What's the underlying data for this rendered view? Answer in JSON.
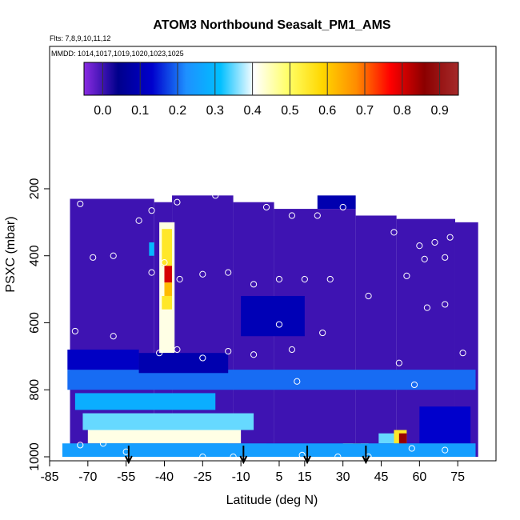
{
  "chart_data": {
    "type": "heatmap",
    "title": "ATOM3 Northbound Seasalt_PM1_AMS",
    "notes": [
      "Flts: 7,8,9,10,11,12",
      "MMDD: 1014,1017,1019,1020,1023,1025"
    ],
    "xlabel": "Latitude (deg N)",
    "ylabel": "PSXC (mbar)",
    "xlim": [
      -85,
      90
    ],
    "ylim": [
      1000,
      0
    ],
    "x_ticks": [
      -85,
      -70,
      -55,
      -40,
      -25,
      -10,
      5,
      15,
      30,
      45,
      60,
      75
    ],
    "y_ticks": [
      200,
      400,
      600,
      800,
      1000
    ],
    "colorbar": {
      "ticks": [
        0.0,
        0.1,
        0.2,
        0.3,
        0.4,
        0.5,
        0.6,
        0.7,
        0.8,
        0.9
      ],
      "tick_labels": [
        "0.0",
        "0.1",
        "0.2",
        "0.3",
        "0.4",
        "0.5",
        "0.6",
        "0.7",
        "0.8",
        "0.9"
      ],
      "range": [
        -0.05,
        0.95
      ],
      "colors": [
        "#8a2be2",
        "#00008b",
        "#0000cd",
        "#1e90ff",
        "#00bfff",
        "#ffffff",
        "#ffff66",
        "#ffd700",
        "#ff8c00",
        "#ff0000",
        "#8b0000",
        "#a52a2a"
      ]
    },
    "profiles": [
      {
        "lat_start": -77,
        "lat_end": -44,
        "p_top": 230,
        "p_bottom": 1000
      },
      {
        "lat_start": -44,
        "lat_end": -37,
        "p_top": 240,
        "p_bottom": 1000
      },
      {
        "lat_start": -37,
        "lat_end": -13,
        "p_top": 220,
        "p_bottom": 1000
      },
      {
        "lat_start": -13,
        "lat_end": 3,
        "p_top": 240,
        "p_bottom": 1000
      },
      {
        "lat_start": 3,
        "lat_end": 35,
        "p_top": 260,
        "p_bottom": 1000
      },
      {
        "lat_start": 35,
        "lat_end": 51,
        "p_top": 280,
        "p_bottom": 1000
      },
      {
        "lat_start": 51,
        "lat_end": 74,
        "p_top": 290,
        "p_bottom": 1000
      },
      {
        "lat_start": 74,
        "lat_end": 83,
        "p_top": 300,
        "p_bottom": 1000
      }
    ],
    "features": [
      {
        "lat": [
          -42,
          -36
        ],
        "p": [
          300,
          690
        ],
        "value": 0.42
      },
      {
        "lat": [
          -41,
          -37
        ],
        "p": [
          320,
          430
        ],
        "value": 0.55
      },
      {
        "lat": [
          -40,
          -37
        ],
        "p": [
          430,
          480
        ],
        "value": 0.8
      },
      {
        "lat": [
          -40,
          -37
        ],
        "p": [
          480,
          520
        ],
        "value": 0.62
      },
      {
        "lat": [
          -41,
          -37
        ],
        "p": [
          520,
          560
        ],
        "value": 0.55
      },
      {
        "lat": [
          -46,
          -44
        ],
        "p": [
          360,
          400
        ],
        "value": 0.3
      },
      {
        "lat": [
          -78,
          82
        ],
        "p": [
          740,
          800
        ],
        "value": 0.2
      },
      {
        "lat": [
          -75,
          -20
        ],
        "p": [
          810,
          860
        ],
        "value": 0.28
      },
      {
        "lat": [
          -72,
          -5
        ],
        "p": [
          870,
          920
        ],
        "value": 0.35
      },
      {
        "lat": [
          -70,
          -10
        ],
        "p": [
          920,
          960
        ],
        "value": 0.42
      },
      {
        "lat": [
          -65,
          -15
        ],
        "p": [
          960,
          1000
        ],
        "value": 0.3
      },
      {
        "lat": [
          0,
          30
        ],
        "p": [
          960,
          1000
        ],
        "value": 0.14
      },
      {
        "lat": [
          30,
          40
        ],
        "p": [
          960,
          1000
        ],
        "value": 0.5
      },
      {
        "lat": [
          34,
          37
        ],
        "p": [
          960,
          1000
        ],
        "value": 0.9
      },
      {
        "lat": [
          44,
          55
        ],
        "p": [
          930,
          960
        ],
        "value": 0.35
      },
      {
        "lat": [
          50,
          55
        ],
        "p": [
          920,
          960
        ],
        "value": 0.55
      },
      {
        "lat": [
          52,
          55
        ],
        "p": [
          930,
          965
        ],
        "value": 0.85
      },
      {
        "lat": [
          -10,
          15
        ],
        "p": [
          520,
          640
        ],
        "value": 0.1
      },
      {
        "lat": [
          -78,
          -50
        ],
        "p": [
          680,
          740
        ],
        "value": 0.12
      },
      {
        "lat": [
          -50,
          -15
        ],
        "p": [
          690,
          750
        ],
        "value": 0.09
      },
      {
        "lat": [
          20,
          35
        ],
        "p": [
          220,
          260
        ],
        "value": 0.09
      },
      {
        "lat": [
          60,
          80
        ],
        "p": [
          850,
          960
        ],
        "value": 0.13
      },
      {
        "lat": [
          -80,
          82
        ],
        "p": [
          960,
          1000
        ],
        "value": 0.25
      }
    ],
    "samples": [
      {
        "lat": -73,
        "p": 245
      },
      {
        "lat": -62,
        "p": 210
      },
      {
        "lat": -50,
        "p": 295
      },
      {
        "lat": -45,
        "p": 265
      },
      {
        "lat": -35,
        "p": 240
      },
      {
        "lat": -20,
        "p": 220
      },
      {
        "lat": -10,
        "p": 205
      },
      {
        "lat": 0,
        "p": 255
      },
      {
        "lat": 10,
        "p": 280
      },
      {
        "lat": 20,
        "p": 280
      },
      {
        "lat": 30,
        "p": 255
      },
      {
        "lat": 50,
        "p": 330
      },
      {
        "lat": 60,
        "p": 370
      },
      {
        "lat": 66,
        "p": 360
      },
      {
        "lat": 72,
        "p": 345
      },
      {
        "lat": -68,
        "p": 405
      },
      {
        "lat": -60,
        "p": 400
      },
      {
        "lat": -45,
        "p": 450
      },
      {
        "lat": -40,
        "p": 420
      },
      {
        "lat": -34,
        "p": 470
      },
      {
        "lat": -25,
        "p": 455
      },
      {
        "lat": -15,
        "p": 450
      },
      {
        "lat": -5,
        "p": 485
      },
      {
        "lat": 5,
        "p": 470
      },
      {
        "lat": 15,
        "p": 470
      },
      {
        "lat": 25,
        "p": 470
      },
      {
        "lat": 40,
        "p": 520
      },
      {
        "lat": 55,
        "p": 460
      },
      {
        "lat": 62,
        "p": 410
      },
      {
        "lat": 70,
        "p": 405
      },
      {
        "lat": -75,
        "p": 625
      },
      {
        "lat": -60,
        "p": 640
      },
      {
        "lat": -42,
        "p": 690
      },
      {
        "lat": -35,
        "p": 680
      },
      {
        "lat": -25,
        "p": 705
      },
      {
        "lat": -15,
        "p": 685
      },
      {
        "lat": -5,
        "p": 695
      },
      {
        "lat": 5,
        "p": 605
      },
      {
        "lat": 10,
        "p": 680
      },
      {
        "lat": 22,
        "p": 630
      },
      {
        "lat": 52,
        "p": 720
      },
      {
        "lat": 63,
        "p": 555
      },
      {
        "lat": 70,
        "p": 545
      },
      {
        "lat": 77,
        "p": 690
      },
      {
        "lat": 12,
        "p": 775
      },
      {
        "lat": 58,
        "p": 785
      },
      {
        "lat": -73,
        "p": 965
      },
      {
        "lat": -64,
        "p": 960
      },
      {
        "lat": -55,
        "p": 985
      },
      {
        "lat": -25,
        "p": 1000
      },
      {
        "lat": -13,
        "p": 1000
      },
      {
        "lat": 14,
        "p": 995
      },
      {
        "lat": 28,
        "p": 1000
      },
      {
        "lat": 40,
        "p": 1000
      },
      {
        "lat": 57,
        "p": 975
      },
      {
        "lat": 70,
        "p": 980
      }
    ],
    "markers": [
      {
        "lat": -54,
        "p": 1000
      },
      {
        "lat": -9,
        "p": 1000
      },
      {
        "lat": 16,
        "p": 1000
      },
      {
        "lat": 39,
        "p": 1000
      }
    ]
  }
}
